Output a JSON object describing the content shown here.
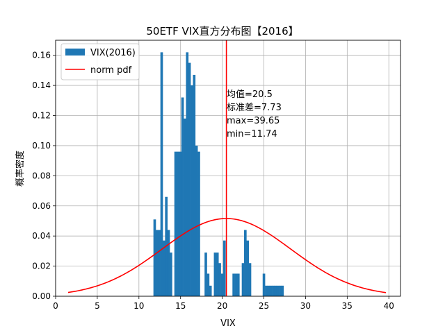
{
  "chart_data": {
    "type": "bar",
    "title": "50ETF VIX直方分布图【2016】",
    "xlabel": "VIX",
    "ylabel": "概率密度",
    "xlim": [
      0,
      41.4
    ],
    "ylim": [
      0,
      0.17
    ],
    "xticks": [
      0,
      5,
      10,
      15,
      20,
      25,
      30,
      35,
      40
    ],
    "yticks": [
      0.0,
      0.02,
      0.04,
      0.06,
      0.08,
      0.1,
      0.12,
      0.14,
      0.16
    ],
    "grid": true,
    "legend_position": "top-left",
    "colors": {
      "bars": "#1f77b4",
      "curve": "#ff0000",
      "mean_line": "#ff0000",
      "grid": "#b0b0b0"
    },
    "series": [
      {
        "name": "VIX(2016)",
        "kind": "histogram",
        "bin_width": 0.279,
        "bin_start": 11.74,
        "values": [
          0.051,
          0.044,
          0.044,
          0.162,
          0.037,
          0.066,
          0.044,
          0.029,
          0.0,
          0.096,
          0.096,
          0.096,
          0.132,
          0.118,
          0.162,
          0.155,
          0.14,
          0.147,
          0.1,
          0.096,
          0.0,
          0.0,
          0.029,
          0.015,
          0.007,
          0.0,
          0.029,
          0.029,
          0.022,
          0.015,
          0.037,
          0.0,
          0.0,
          0.0,
          0.015,
          0.015,
          0.015,
          0.0,
          0.022,
          0.044,
          0.037,
          0.022,
          0.0,
          0.0,
          0.0,
          0.0,
          0.0,
          0.015,
          0.007,
          0.007,
          0.007,
          0.007,
          0.007,
          0.007,
          0.007,
          0.007,
          0.0,
          0.0,
          0.0,
          0.0,
          0.0,
          0.0,
          0.0,
          0.0,
          0.0,
          0.0,
          0.0,
          0.0,
          0.0,
          0.0,
          0.0,
          0.0,
          0.0,
          0.0,
          0.0,
          0.0,
          0.0,
          0.0,
          0.0,
          0.0,
          0.0,
          0.0,
          0.0,
          0.0,
          0.0,
          0.0,
          0.0,
          0.0,
          0.0,
          0.0,
          0.0,
          0.0,
          0.0,
          0.0,
          0.0,
          0.0,
          0.0,
          0.0,
          0.0,
          0.0
        ]
      },
      {
        "name": "norm pdf",
        "kind": "line",
        "mean": 20.5,
        "std": 7.73,
        "x_range": [
          1.5,
          39.65
        ]
      }
    ],
    "annotation": [
      "均值=20.5",
      "标准差=7.73",
      "max=39.65",
      "min=11.74"
    ],
    "mean_line_x": 20.5
  }
}
